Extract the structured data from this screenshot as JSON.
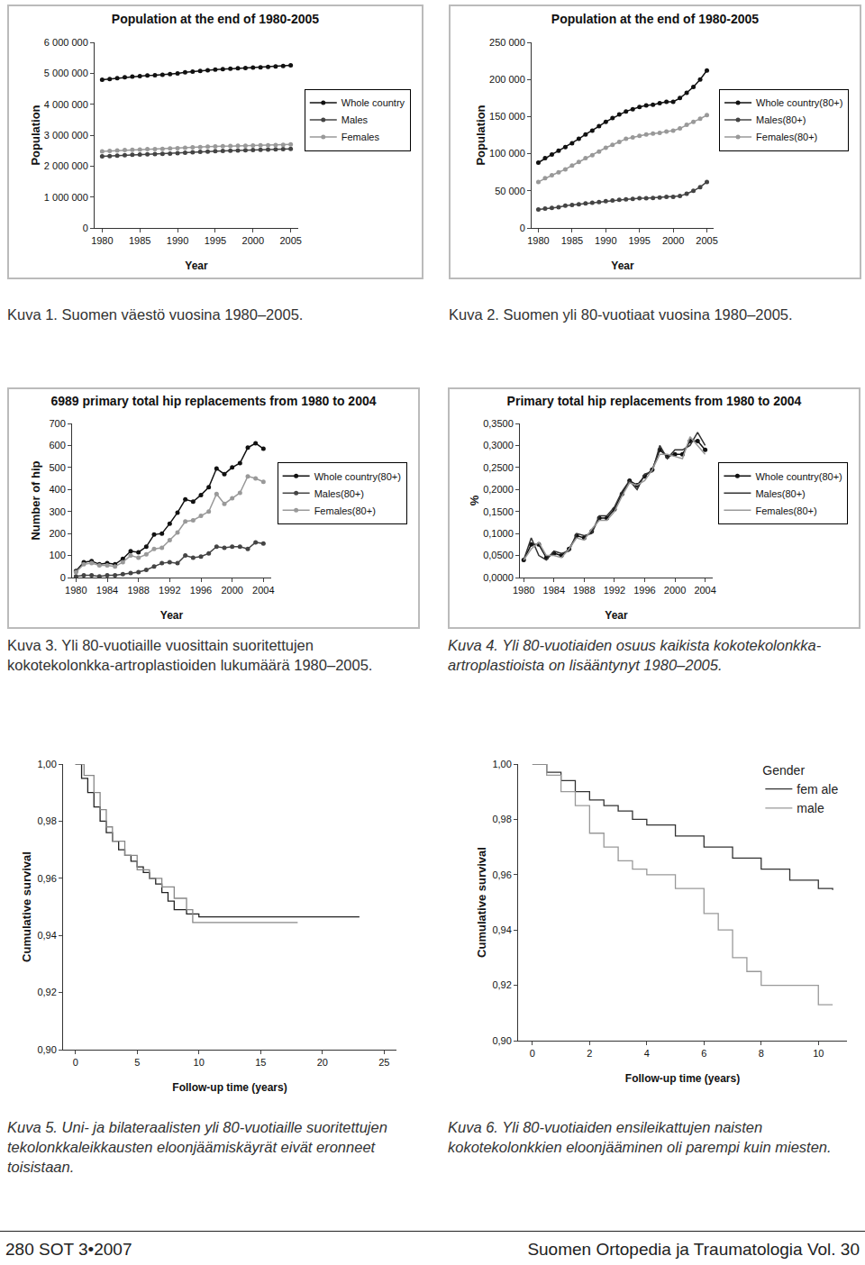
{
  "chart_data": [
    {
      "type": "line",
      "title": "Population at the end of 1980-2005",
      "x_label": "Year",
      "y_label": "Population",
      "x": [
        1980,
        1981,
        1982,
        1983,
        1984,
        1985,
        1986,
        1987,
        1988,
        1989,
        1990,
        1991,
        1992,
        1993,
        1994,
        1995,
        1996,
        1997,
        1998,
        1999,
        2000,
        2001,
        2002,
        2003,
        2004,
        2005
      ],
      "series": [
        {
          "name": "Whole country",
          "color": "#111111",
          "marker": "circle",
          "values": [
            4788000,
            4812000,
            4842000,
            4870000,
            4894000,
            4911000,
            4926000,
            4939000,
            4954000,
            4974000,
            4998000,
            5029000,
            5055000,
            5078000,
            5099000,
            5117000,
            5132000,
            5147000,
            5160000,
            5171000,
            5181000,
            5195000,
            5206000,
            5220000,
            5237000,
            5256000
          ]
        },
        {
          "name": "Males",
          "color": "#444444",
          "marker": "circle",
          "values": [
            2312000,
            2324000,
            2339000,
            2353000,
            2365000,
            2374000,
            2381000,
            2388000,
            2396000,
            2406000,
            2419000,
            2435000,
            2449000,
            2461000,
            2472000,
            2482000,
            2490000,
            2498000,
            2504000,
            2510000,
            2516000,
            2524000,
            2531000,
            2538000,
            2547000,
            2558000
          ]
        },
        {
          "name": "Females",
          "color": "#999999",
          "marker": "circle",
          "values": [
            2476000,
            2488000,
            2503000,
            2517000,
            2529000,
            2537000,
            2545000,
            2551000,
            2558000,
            2568000,
            2579000,
            2594000,
            2606000,
            2617000,
            2627000,
            2635000,
            2642000,
            2649000,
            2656000,
            2661000,
            2665000,
            2671000,
            2675000,
            2682000,
            2690000,
            2698000
          ]
        }
      ],
      "xlim": [
        1979,
        2006
      ],
      "xticks": [
        1980,
        1985,
        1990,
        1995,
        2000,
        2005
      ],
      "ylim": [
        0,
        6000000
      ],
      "yticks": [
        0,
        {
          "value": 1000000,
          "label": "1 000 000"
        },
        {
          "value": 2000000,
          "label": "2 000 000"
        },
        {
          "value": 3000000,
          "label": "3 000 000"
        },
        {
          "value": 4000000,
          "label": "4 000 000"
        },
        {
          "value": 5000000,
          "label": "5 000 000"
        },
        {
          "value": 6000000,
          "label": "6 000 000"
        }
      ],
      "grid": false,
      "legend": "right"
    },
    {
      "type": "line",
      "title": "Population at the end of 1980-2005",
      "x_label": "Year",
      "y_label": "Population",
      "x": [
        1980,
        1981,
        1982,
        1983,
        1984,
        1985,
        1986,
        1987,
        1988,
        1989,
        1990,
        1991,
        1992,
        1993,
        1994,
        1995,
        1996,
        1997,
        1998,
        1999,
        2000,
        2001,
        2002,
        2003,
        2004,
        2005
      ],
      "series": [
        {
          "name": "Whole country(80+)",
          "color": "#111111",
          "marker": "circle",
          "values": [
            88000,
            94000,
            99000,
            104000,
            109000,
            114000,
            120000,
            126000,
            131000,
            137000,
            143000,
            148000,
            153000,
            157000,
            160000,
            163000,
            165000,
            166000,
            168000,
            170000,
            170000,
            175000,
            182000,
            190000,
            200000,
            212000
          ]
        },
        {
          "name": "Males(80+)",
          "color": "#444444",
          "marker": "circle",
          "values": [
            25000,
            26000,
            27000,
            28000,
            30000,
            31000,
            32000,
            33000,
            34000,
            35000,
            36000,
            37000,
            38000,
            38500,
            39000,
            40000,
            40000,
            40500,
            41000,
            42000,
            42000,
            43000,
            46000,
            50000,
            55000,
            62000
          ]
        },
        {
          "name": "Females(80+)",
          "color": "#999999",
          "marker": "circle",
          "values": [
            62000,
            67000,
            71000,
            75000,
            79000,
            84000,
            89000,
            94000,
            98000,
            103000,
            108000,
            112000,
            116000,
            120000,
            122000,
            124000,
            126000,
            127000,
            128000,
            130000,
            131000,
            134000,
            139000,
            143000,
            147000,
            152000
          ]
        }
      ],
      "xlim": [
        1979,
        2006
      ],
      "xticks": [
        1980,
        1985,
        1990,
        1995,
        2000,
        2005
      ],
      "ylim": [
        0,
        250000
      ],
      "yticks": [
        0,
        {
          "value": 50000,
          "label": "50 000"
        },
        {
          "value": 100000,
          "label": "100 000"
        },
        {
          "value": 150000,
          "label": "150 000"
        },
        {
          "value": 200000,
          "label": "200 000"
        },
        {
          "value": 250000,
          "label": "250 000"
        }
      ],
      "grid": false,
      "legend": "right"
    },
    {
      "type": "line",
      "title": "6989 primary total hip replacements from 1980 to 2004",
      "x_label": "Year",
      "y_label": "Number of hip",
      "x": [
        1980,
        1981,
        1982,
        1983,
        1984,
        1985,
        1986,
        1987,
        1988,
        1989,
        1990,
        1991,
        1992,
        1993,
        1994,
        1995,
        1996,
        1997,
        1998,
        1999,
        2000,
        2001,
        2002,
        2003,
        2004
      ],
      "series": [
        {
          "name": "Whole country(80+)",
          "color": "#111111",
          "marker": "circle",
          "values": [
            30,
            70,
            75,
            60,
            65,
            60,
            85,
            120,
            115,
            140,
            195,
            200,
            245,
            295,
            355,
            345,
            375,
            410,
            495,
            470,
            500,
            520,
            590,
            610,
            585
          ]
        },
        {
          "name": "Males(80+)",
          "color": "#444444",
          "marker": "circle",
          "values": [
            5,
            10,
            10,
            5,
            10,
            10,
            15,
            20,
            25,
            35,
            50,
            65,
            70,
            65,
            100,
            90,
            95,
            110,
            140,
            135,
            140,
            140,
            130,
            160,
            155
          ]
        },
        {
          "name": "Females(80+)",
          "color": "#999999",
          "marker": "circle",
          "values": [
            25,
            60,
            65,
            55,
            55,
            50,
            70,
            100,
            90,
            105,
            130,
            135,
            170,
            205,
            255,
            260,
            280,
            300,
            380,
            335,
            360,
            385,
            460,
            450,
            435
          ]
        }
      ],
      "xlim": [
        1979.5,
        2005
      ],
      "xticks": [
        1980,
        1984,
        1988,
        1992,
        1996,
        2000,
        2004
      ],
      "ylim": [
        0,
        700
      ],
      "yticks": [
        0,
        100,
        200,
        300,
        400,
        500,
        600,
        700
      ],
      "grid": false,
      "legend": "right"
    },
    {
      "type": "line",
      "title": "Primary total hip replacements from 1980 to 2004",
      "x_label": "Year",
      "y_label": "%",
      "x": [
        1980,
        1981,
        1982,
        1983,
        1984,
        1985,
        1986,
        1987,
        1988,
        1989,
        1990,
        1991,
        1992,
        1993,
        1994,
        1995,
        1996,
        1997,
        1998,
        1999,
        2000,
        2001,
        2002,
        2003,
        2004
      ],
      "series": [
        {
          "name": "Whole country(80+)",
          "color": "#111111",
          "marker": "circle",
          "values": [
            0.04,
            0.075,
            0.075,
            0.045,
            0.055,
            0.05,
            0.065,
            0.095,
            0.09,
            0.105,
            0.135,
            0.135,
            0.155,
            0.19,
            0.22,
            0.21,
            0.23,
            0.245,
            0.29,
            0.275,
            0.28,
            0.28,
            0.31,
            0.31,
            0.29
          ]
        },
        {
          "name": "Males(80+)",
          "color": "#333333",
          "marker": "none",
          "values": [
            0.04,
            0.09,
            0.05,
            0.04,
            0.06,
            0.055,
            0.06,
            0.1,
            0.095,
            0.1,
            0.14,
            0.14,
            0.16,
            0.195,
            0.22,
            0.2,
            0.235,
            0.24,
            0.3,
            0.27,
            0.29,
            0.29,
            0.3,
            0.33,
            0.3
          ]
        },
        {
          "name": "Females(80+)",
          "color": "#999999",
          "marker": "none",
          "values": [
            0.04,
            0.065,
            0.08,
            0.05,
            0.05,
            0.045,
            0.065,
            0.09,
            0.085,
            0.11,
            0.13,
            0.13,
            0.15,
            0.185,
            0.215,
            0.21,
            0.22,
            0.245,
            0.28,
            0.28,
            0.275,
            0.27,
            0.32,
            0.3,
            0.28
          ]
        }
      ],
      "xlim": [
        1979.5,
        2005
      ],
      "xticks": [
        1980,
        1984,
        1988,
        1992,
        1996,
        2000,
        2004
      ],
      "ylim": [
        0,
        0.35
      ],
      "yticks": [
        {
          "value": 0,
          "label": "0,0000"
        },
        {
          "value": 0.05,
          "label": "0,0500"
        },
        {
          "value": 0.1,
          "label": "0,1000"
        },
        {
          "value": 0.15,
          "label": "0,1500"
        },
        {
          "value": 0.2,
          "label": "0,2000"
        },
        {
          "value": 0.25,
          "label": "0,2500"
        },
        {
          "value": 0.3,
          "label": "0,3000"
        },
        {
          "value": 0.35,
          "label": "0,3500"
        }
      ],
      "grid": false,
      "legend": "right"
    },
    {
      "type": "line",
      "line_style": "step",
      "x_label": "Follow-up time (years)",
      "y_label": "Cumulative survival",
      "series": [
        {
          "color": "#222222",
          "x": [
            0,
            0.5,
            1,
            1.5,
            2,
            2.5,
            3,
            3.5,
            4,
            4.5,
            5,
            5.5,
            6,
            6.5,
            7,
            7.5,
            8,
            9,
            10,
            23
          ],
          "values": [
            1,
            0.995,
            0.99,
            0.985,
            0.98,
            0.976,
            0.973,
            0.97,
            0.968,
            0.966,
            0.964,
            0.962,
            0.96,
            0.958,
            0.955,
            0.952,
            0.949,
            0.9475,
            0.9465,
            0.9465
          ]
        },
        {
          "color": "#888888",
          "x": [
            0,
            0.7,
            1.5,
            2,
            2.5,
            3,
            4,
            5,
            6,
            7,
            8,
            9,
            9.5,
            18
          ],
          "values": [
            1,
            0.996,
            0.99,
            0.984,
            0.978,
            0.973,
            0.968,
            0.963,
            0.96,
            0.957,
            0.953,
            0.949,
            0.9445,
            0.9445
          ]
        }
      ],
      "xlim": [
        -1,
        26
      ],
      "xticks": [
        0,
        5,
        10,
        15,
        20,
        25
      ],
      "ylim": [
        0.9,
        1.0
      ],
      "yticks": [
        {
          "value": 0.9,
          "label": "0,90"
        },
        {
          "value": 0.92,
          "label": "0,92"
        },
        {
          "value": 0.94,
          "label": "0,94"
        },
        {
          "value": 0.96,
          "label": "0,96"
        },
        {
          "value": 0.98,
          "label": "0,98"
        },
        {
          "value": 1.0,
          "label": "1,00"
        }
      ],
      "grid": false
    },
    {
      "type": "line",
      "line_style": "step",
      "x_label": "Follow-up time (years)",
      "y_label": "Cumulative survival",
      "legend_title": "Gender",
      "series": [
        {
          "name": "fem ale",
          "color": "#333333",
          "x": [
            0,
            0.5,
            1,
            1.5,
            2,
            2.5,
            3,
            3.5,
            4,
            5,
            6,
            7,
            8,
            9,
            10,
            10.5
          ],
          "values": [
            1,
            0.997,
            0.994,
            0.99,
            0.987,
            0.985,
            0.983,
            0.98,
            0.978,
            0.974,
            0.97,
            0.966,
            0.962,
            0.958,
            0.955,
            0.9545
          ]
        },
        {
          "name": "male",
          "color": "#999999",
          "x": [
            0,
            0.5,
            1,
            1.5,
            2,
            2.5,
            3,
            3.5,
            4,
            5,
            6,
            6.5,
            7,
            7.5,
            8,
            9,
            10,
            10.5
          ],
          "values": [
            1,
            0.996,
            0.99,
            0.985,
            0.975,
            0.97,
            0.965,
            0.962,
            0.96,
            0.955,
            0.946,
            0.94,
            0.93,
            0.925,
            0.92,
            0.92,
            0.913,
            0.913
          ]
        }
      ],
      "xlim": [
        -0.5,
        11
      ],
      "xticks": [
        0,
        2,
        4,
        6,
        8,
        10
      ],
      "ylim": [
        0.9,
        1.0
      ],
      "yticks": [
        {
          "value": 0.9,
          "label": "0,90"
        },
        {
          "value": 0.92,
          "label": "0,92"
        },
        {
          "value": 0.94,
          "label": "0,94"
        },
        {
          "value": 0.96,
          "label": "0,96"
        },
        {
          "value": 0.98,
          "label": "0,98"
        },
        {
          "value": 1.0,
          "label": "1,00"
        }
      ],
      "grid": false,
      "legend": "upper right"
    }
  ],
  "captions": [
    "Kuva 1. Suomen väestö vuosina 1980–2005.",
    "Kuva 2. Suomen yli 80-vuotiaat vuosina 1980–2005.",
    "Kuva 3. Yli 80-vuotiaille vuosittain suoritettujen kokotekolonkka-artroplastioiden lukumäärä 1980–2005.",
    "Kuva 4. Yli 80-vuotiaiden osuus kaikista kokotekolonkka-artroplastioista on lisääntynyt 1980–2005.",
    "Kuva 5. Uni- ja bilateraalisten yli 80-vuotiaille suoritettujen tekolonkkaleikkausten eloonjäämiskäyrät eivät eronneet toisistaan.",
    "Kuva 6. Yli 80-vuotiaiden ensileikattujen naisten kokotekolonkkien eloonjääminen oli parempi kuin miesten."
  ],
  "footer": {
    "left": "280 SOT 3•2007",
    "right": "Suomen Ortopedia ja Traumatologia Vol. 30"
  }
}
